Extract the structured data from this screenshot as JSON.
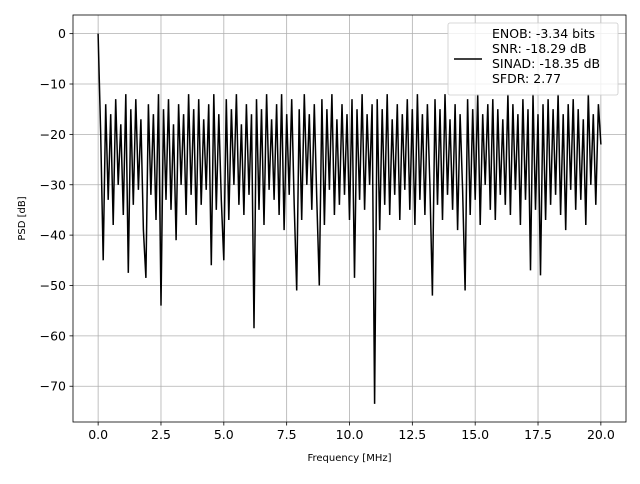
{
  "chart_data": {
    "type": "line",
    "title": "",
    "xlabel": "Frequency [MHz]",
    "ylabel": "PSD [dB]",
    "xlim": [
      -1.0,
      21.0
    ],
    "ylim": [
      -77.1,
      3.7
    ],
    "grid": true,
    "xticks": [
      0.0,
      2.5,
      5.0,
      7.5,
      10.0,
      12.5,
      15.0,
      17.5,
      20.0
    ],
    "xtick_labels": [
      "0.0",
      "2.5",
      "5.0",
      "7.5",
      "10.0",
      "12.5",
      "15.0",
      "17.5",
      "20.0"
    ],
    "yticks": [
      0,
      -10,
      -20,
      -30,
      -40,
      -50,
      -60,
      -70
    ],
    "ytick_labels": [
      "0",
      "−10",
      "−20",
      "−30",
      "−40",
      "−50",
      "−60",
      "−70"
    ],
    "legend_placement": "upper-right",
    "legend_lines": [
      "ENOB: -3.34 bits",
      "SNR: -18.29 dB",
      "SINAD: -18.35 dB",
      "SFDR: 2.77"
    ],
    "series": [
      {
        "color": "#000000",
        "x_start": 0.0,
        "x_step": 0.1,
        "values": [
          0,
          -20,
          -45,
          -14,
          -33,
          -16,
          -38,
          -13,
          -30,
          -18,
          -36,
          -12,
          -47.5,
          -15,
          -34,
          -13,
          -31,
          -17,
          -39,
          -48.5,
          -14,
          -32,
          -16,
          -37,
          -12,
          -54,
          -15,
          -33,
          -13,
          -35,
          -18,
          -41,
          -14,
          -30,
          -16,
          -36,
          -12,
          -32,
          -15,
          -38,
          -13,
          -34,
          -17,
          -31,
          -14,
          -46,
          -12,
          -35,
          -16,
          -33,
          -45,
          -13,
          -37,
          -15,
          -30,
          -12,
          -34,
          -18,
          -36,
          -14,
          -32,
          -16,
          -58.5,
          -13,
          -35,
          -15,
          -38,
          -12,
          -31,
          -17,
          -33,
          -14,
          -36,
          -12,
          -39,
          -16,
          -32,
          -13,
          -34,
          -51,
          -15,
          -37,
          -12,
          -30,
          -16,
          -35,
          -14,
          -33,
          -50,
          -13,
          -38,
          -15,
          -31,
          -12,
          -36,
          -17,
          -34,
          -14,
          -32,
          -16,
          -37,
          -13,
          -48.5,
          -15,
          -33,
          -12,
          -35,
          -16,
          -30,
          -14,
          -73.5,
          -13,
          -39,
          -15,
          -34,
          -12,
          -36,
          -17,
          -32,
          -14,
          -37,
          -16,
          -31,
          -13,
          -35,
          -15,
          -38,
          -12,
          -33,
          -16,
          -36,
          -14,
          -30,
          -52,
          -13,
          -34,
          -15,
          -37,
          -12,
          -32,
          -17,
          -35,
          -14,
          -39,
          -16,
          -31,
          -51,
          -13,
          -36,
          -15,
          -33,
          -12,
          -38,
          -16,
          -30,
          -14,
          -35,
          -13,
          -37,
          -15,
          -32,
          -17,
          -34,
          -12,
          -36,
          -14,
          -31,
          -16,
          -38,
          -13,
          -33,
          -15,
          -47,
          -12,
          -35,
          -16,
          -48,
          -14,
          -37,
          -13,
          -34,
          -15,
          -32,
          -12,
          -36,
          -16,
          -39,
          -14,
          -31,
          -13,
          -35,
          -15,
          -33,
          -17,
          -38,
          -12,
          -30,
          -16,
          -34,
          -14,
          -22
        ]
      }
    ]
  }
}
